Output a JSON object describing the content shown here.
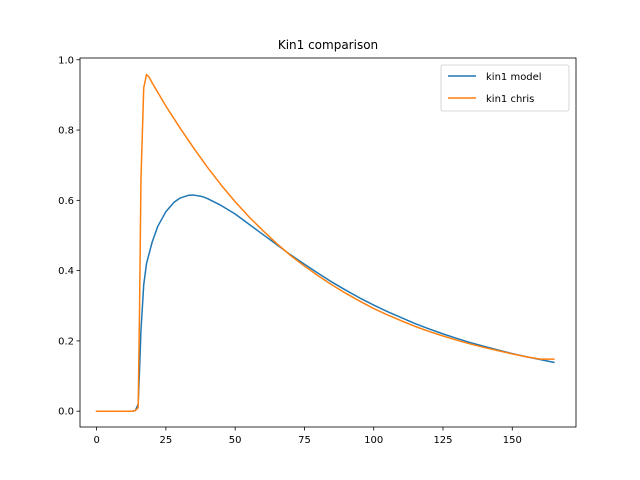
{
  "chart_data": {
    "type": "line",
    "title": "Kin1 comparison",
    "xlabel": "",
    "ylabel": "",
    "xlim": [
      -6,
      173
    ],
    "ylim": [
      -0.045,
      1.005
    ],
    "xticks": [
      0,
      25,
      50,
      75,
      100,
      125,
      150
    ],
    "yticks": [
      0.0,
      0.2,
      0.4,
      0.6,
      0.8,
      1.0
    ],
    "xtick_labels": [
      "0",
      "25",
      "50",
      "75",
      "100",
      "125",
      "150"
    ],
    "ytick_labels": [
      "0.0",
      "0.2",
      "0.4",
      "0.6",
      "0.8",
      "1.0"
    ],
    "grid": false,
    "legend_position": "top-right",
    "series": [
      {
        "name": "kin1 model",
        "color": "#1f77b4",
        "x": [
          0,
          5,
          10,
          13,
          14,
          15,
          15.5,
          16,
          17,
          18,
          20,
          22,
          25,
          28,
          30,
          33,
          35,
          38,
          40,
          45,
          50,
          55,
          60,
          65,
          70,
          75,
          80,
          85,
          90,
          95,
          100,
          105,
          110,
          115,
          120,
          125,
          130,
          135,
          140,
          145,
          150,
          155,
          160,
          165
        ],
        "y": [
          0.0,
          0.0,
          0.0,
          0.0,
          0.002,
          0.02,
          0.12,
          0.23,
          0.36,
          0.42,
          0.48,
          0.525,
          0.568,
          0.595,
          0.606,
          0.614,
          0.615,
          0.611,
          0.605,
          0.585,
          0.561,
          0.532,
          0.503,
          0.474,
          0.445,
          0.418,
          0.392,
          0.367,
          0.344,
          0.322,
          0.302,
          0.283,
          0.266,
          0.249,
          0.234,
          0.22,
          0.207,
          0.195,
          0.184,
          0.174,
          0.164,
          0.155,
          0.147,
          0.139
        ]
      },
      {
        "name": "kin1 chris",
        "color": "#ff7f0e",
        "x": [
          0,
          5,
          10,
          13,
          14,
          15,
          15.5,
          16,
          17,
          18,
          19,
          20,
          25,
          30,
          35,
          40,
          45,
          50,
          55,
          60,
          65,
          70,
          75,
          80,
          85,
          90,
          95,
          100,
          105,
          110,
          115,
          120,
          125,
          130,
          135,
          140,
          145,
          150,
          155,
          160,
          165
        ],
        "y": [
          0.0,
          0.0,
          0.0,
          0.0,
          0.002,
          0.01,
          0.3,
          0.66,
          0.92,
          0.958,
          0.95,
          0.935,
          0.868,
          0.807,
          0.749,
          0.694,
          0.643,
          0.596,
          0.553,
          0.514,
          0.477,
          0.443,
          0.413,
          0.385,
          0.359,
          0.335,
          0.313,
          0.292,
          0.274,
          0.257,
          0.241,
          0.227,
          0.214,
          0.202,
          0.191,
          0.181,
          0.172,
          0.163,
          0.155,
          0.148,
          0.148
        ]
      }
    ]
  }
}
